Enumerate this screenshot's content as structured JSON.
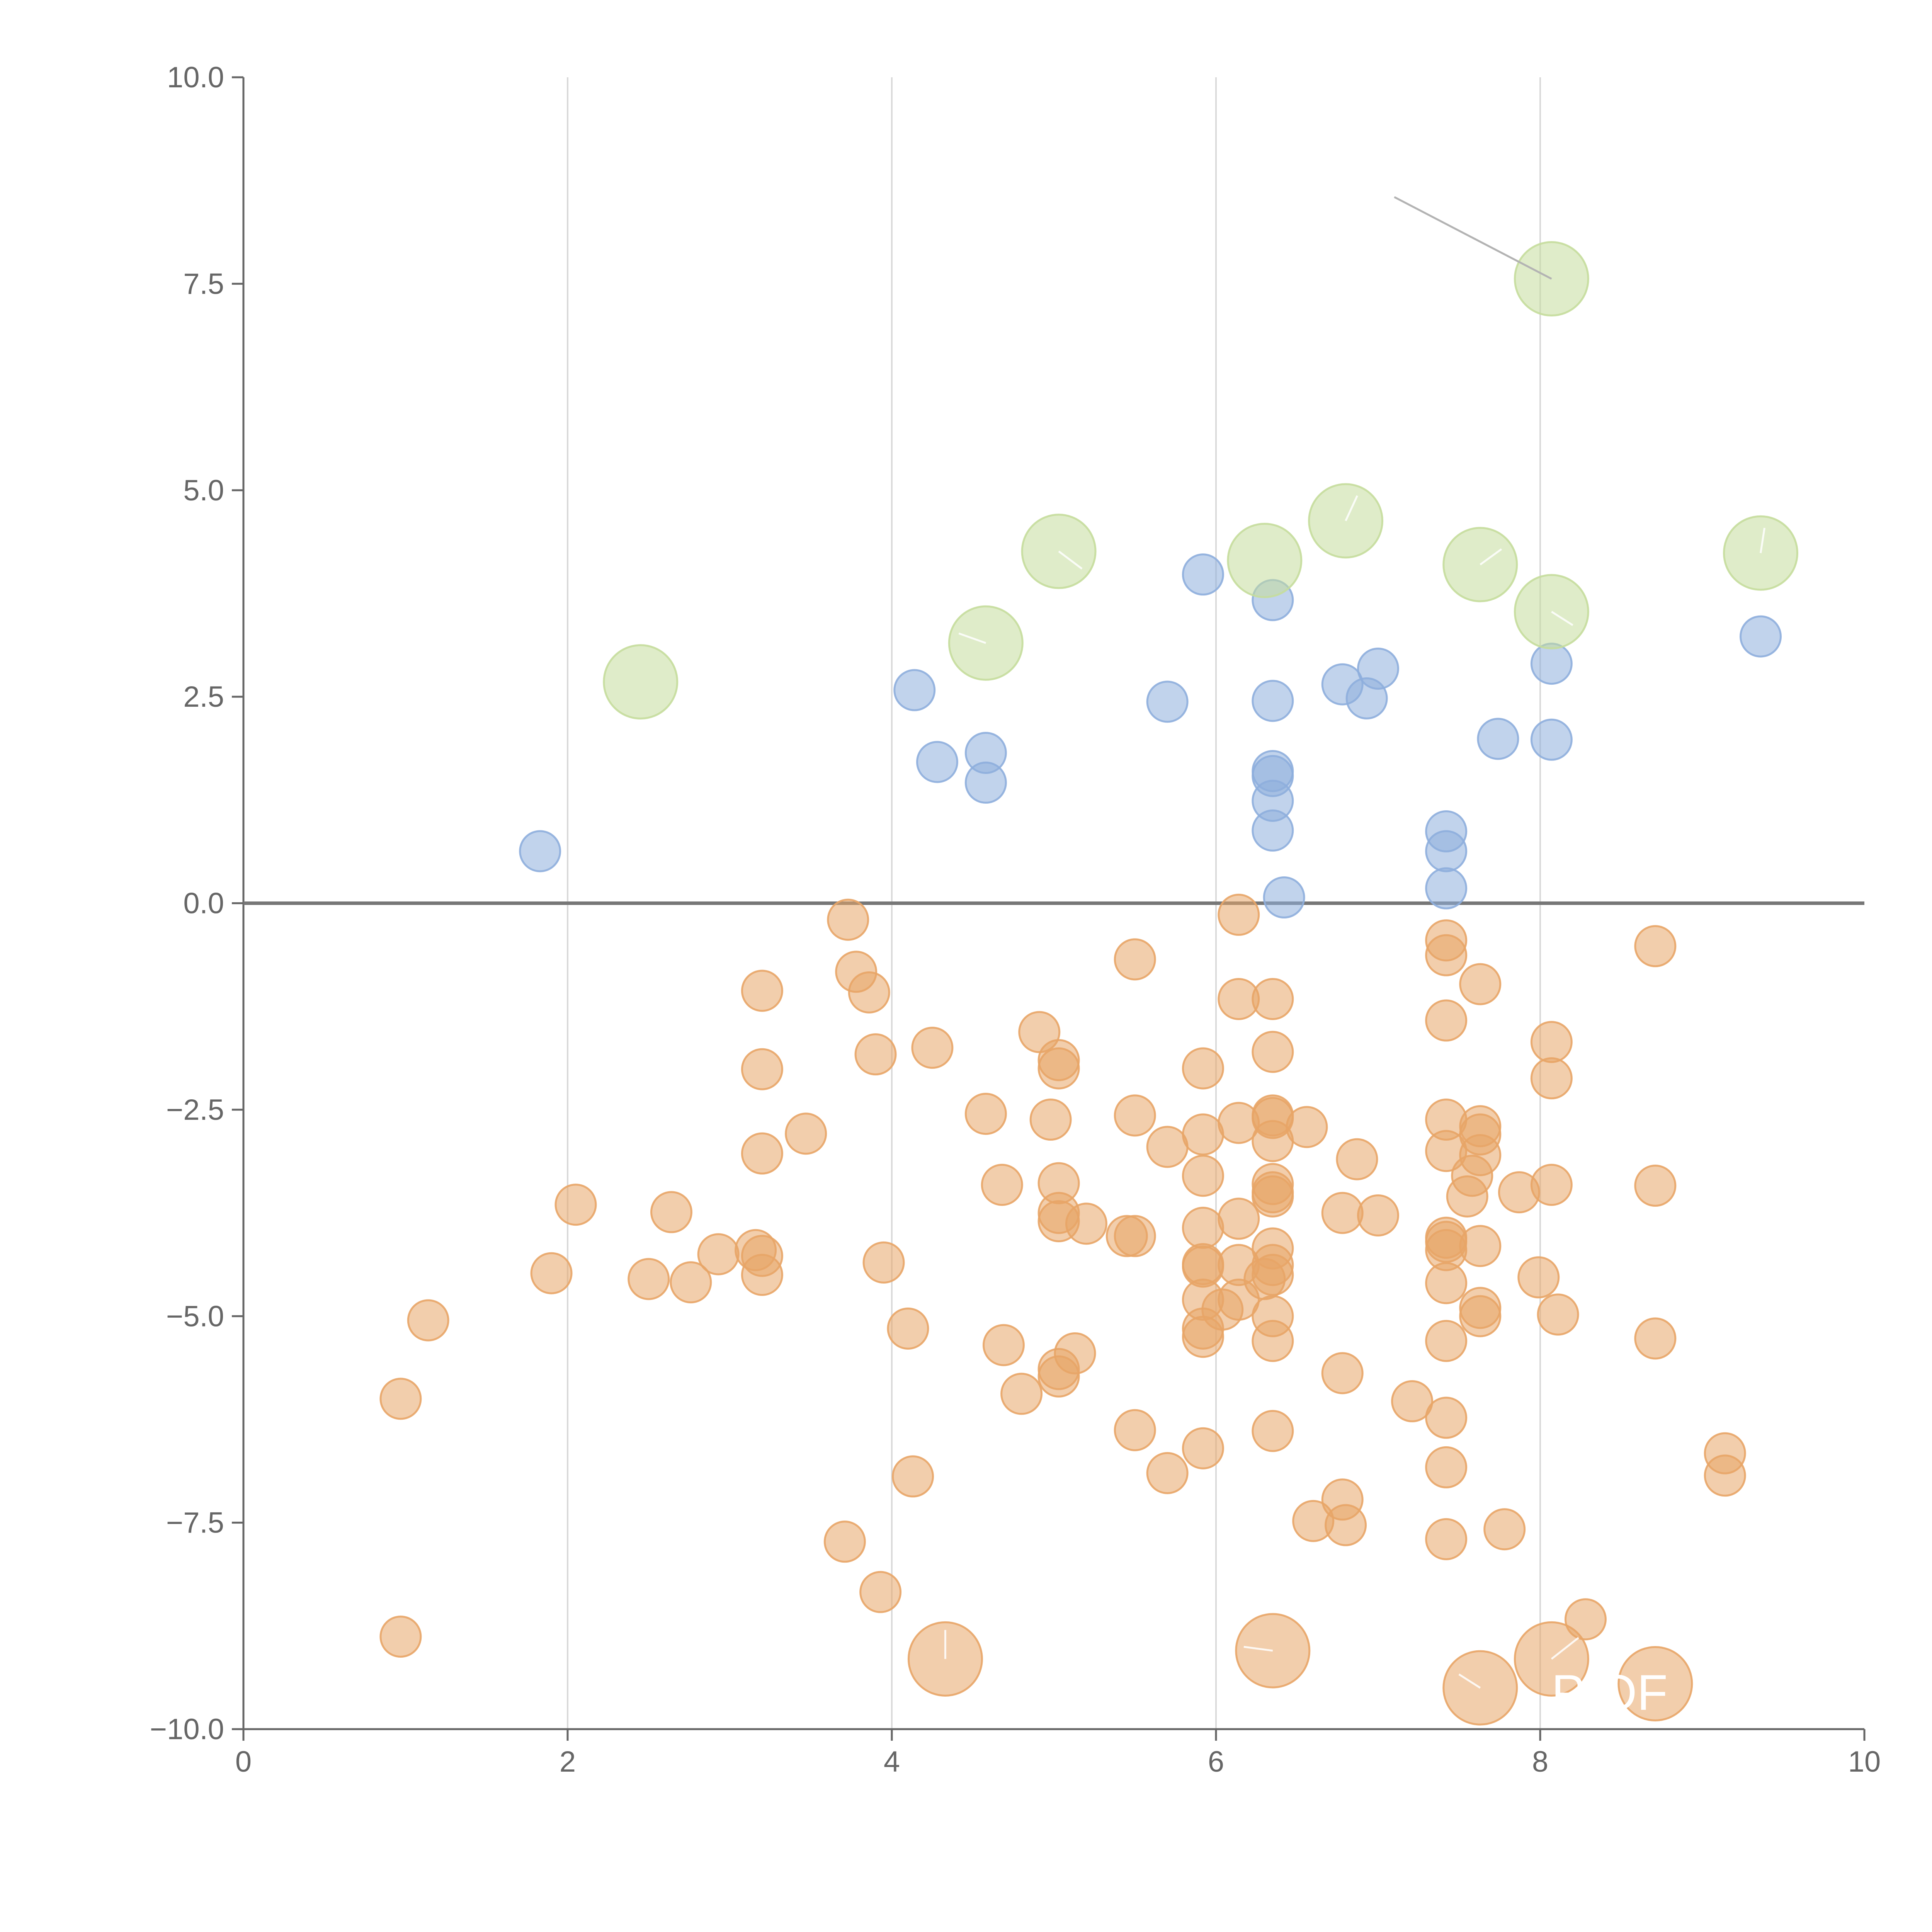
{
  "chart_data": {
    "type": "scatter",
    "title": "",
    "xlabel": "",
    "ylabel": "",
    "xlim": [
      0,
      10
    ],
    "ylim": [
      -10,
      10
    ],
    "grid": "vertical",
    "x_ticks": [
      0,
      2,
      4,
      6,
      8,
      10
    ],
    "x_tick_labels": [
      "0",
      "2",
      "4",
      "6",
      "8",
      "10"
    ],
    "y_ticks": [
      10,
      7.5,
      5,
      2.5,
      0,
      -2.5,
      -5,
      -7.5,
      -10
    ],
    "y_tick_labels": [
      "10.0",
      "7.5",
      "5.0",
      "2.5",
      "0.0",
      "−2.5",
      "−5.0",
      "−7.5",
      "−10.0"
    ],
    "reference_line_y": 0,
    "colors": {
      "axis": "#666666",
      "grid": "#d9d9d9",
      "zero_line": "#777777",
      "connector": "#b3b3b3",
      "label_leader": "#ffffff"
    },
    "annotation_text": "P OF",
    "series": [
      {
        "name": "Orange",
        "color": "#e8a567",
        "size": "small",
        "points": [
          [
            3.73,
            -0.2
          ],
          [
            3.78,
            -0.83
          ],
          [
            3.86,
            -1.08
          ],
          [
            3.9,
            -1.83
          ],
          [
            3.2,
            -1.06
          ],
          [
            3.2,
            -2.01
          ],
          [
            3.2,
            -3.03
          ],
          [
            3.47,
            -2.79
          ],
          [
            2.05,
            -3.65
          ],
          [
            2.64,
            -3.74
          ],
          [
            1.9,
            -4.48
          ],
          [
            2.5,
            -4.55
          ],
          [
            2.76,
            -4.59
          ],
          [
            2.93,
            -4.25
          ],
          [
            3.16,
            -4.2
          ],
          [
            3.2,
            -4.27
          ],
          [
            3.2,
            -4.5
          ],
          [
            1.14,
            -5.05
          ],
          [
            0.97,
            -6.0
          ],
          [
            0.97,
            -8.88
          ],
          [
            4.25,
            -1.75
          ],
          [
            4.58,
            -2.55
          ],
          [
            4.68,
            -3.41
          ],
          [
            4.91,
            -1.56
          ],
          [
            5.03,
            -1.9
          ],
          [
            5.03,
            -2.0
          ],
          [
            4.98,
            -2.62
          ],
          [
            5.03,
            -3.39
          ],
          [
            5.03,
            -3.75
          ],
          [
            5.03,
            -3.85
          ],
          [
            5.2,
            -3.88
          ],
          [
            5.45,
            -4.03
          ],
          [
            5.5,
            -4.03
          ],
          [
            3.95,
            -4.35
          ],
          [
            4.1,
            -5.15
          ],
          [
            4.69,
            -5.35
          ],
          [
            4.8,
            -5.94
          ],
          [
            5.03,
            -5.64
          ],
          [
            5.03,
            -5.73
          ],
          [
            5.13,
            -5.45
          ],
          [
            3.71,
            -7.73
          ],
          [
            3.93,
            -8.34
          ],
          [
            4.13,
            -6.94
          ],
          [
            5.5,
            -0.68
          ],
          [
            5.5,
            -2.57
          ],
          [
            5.7,
            -2.95
          ],
          [
            5.92,
            -2.0
          ],
          [
            5.92,
            -2.8
          ],
          [
            5.92,
            -3.3
          ],
          [
            6.14,
            -0.14
          ],
          [
            6.14,
            -1.16
          ],
          [
            6.14,
            -2.66
          ],
          [
            6.14,
            -3.82
          ],
          [
            6.35,
            -1.16
          ],
          [
            6.35,
            -1.8
          ],
          [
            6.35,
            -2.57
          ],
          [
            6.35,
            -2.6
          ],
          [
            6.35,
            -2.88
          ],
          [
            6.35,
            -3.4
          ],
          [
            6.35,
            -3.5
          ],
          [
            6.35,
            -3.55
          ],
          [
            6.56,
            -2.71
          ],
          [
            6.87,
            -3.1
          ],
          [
            5.92,
            -3.93
          ],
          [
            5.92,
            -4.37
          ],
          [
            5.92,
            -4.4
          ],
          [
            6.14,
            -4.38
          ],
          [
            6.35,
            -4.18
          ],
          [
            6.35,
            -4.38
          ],
          [
            6.35,
            -4.5
          ],
          [
            6.3,
            -4.55
          ],
          [
            5.92,
            -4.8
          ],
          [
            6.04,
            -4.92
          ],
          [
            6.14,
            -4.8
          ],
          [
            5.92,
            -5.15
          ],
          [
            5.92,
            -5.25
          ],
          [
            6.35,
            -5.0
          ],
          [
            6.35,
            -5.3
          ],
          [
            5.5,
            -6.38
          ],
          [
            5.7,
            -6.9
          ],
          [
            5.92,
            -6.6
          ],
          [
            6.35,
            -6.39
          ],
          [
            6.78,
            -3.75
          ],
          [
            7.0,
            -3.78
          ],
          [
            6.78,
            -5.69
          ],
          [
            7.21,
            -6.03
          ],
          [
            6.6,
            -7.48
          ],
          [
            6.78,
            -7.22
          ],
          [
            6.8,
            -7.53
          ],
          [
            7.42,
            -0.45
          ],
          [
            7.42,
            -0.63
          ],
          [
            7.42,
            -1.42
          ],
          [
            7.63,
            -0.98
          ],
          [
            7.42,
            -2.62
          ],
          [
            7.42,
            -3.0
          ],
          [
            7.63,
            -2.7
          ],
          [
            7.63,
            -2.8
          ],
          [
            7.63,
            -3.05
          ],
          [
            7.58,
            -3.3
          ],
          [
            7.55,
            -3.55
          ],
          [
            7.42,
            -4.05
          ],
          [
            7.42,
            -4.1
          ],
          [
            7.42,
            -4.2
          ],
          [
            7.63,
            -4.15
          ],
          [
            7.42,
            -4.6
          ],
          [
            7.63,
            -4.9
          ],
          [
            7.63,
            -5.0
          ],
          [
            7.42,
            -5.3
          ],
          [
            7.42,
            -6.23
          ],
          [
            7.42,
            -6.83
          ],
          [
            7.42,
            -7.7
          ],
          [
            7.78,
            -7.58
          ],
          [
            8.07,
            -1.68
          ],
          [
            8.07,
            -2.12
          ],
          [
            7.87,
            -3.5
          ],
          [
            8.07,
            -3.41
          ],
          [
            7.99,
            -4.53
          ],
          [
            8.11,
            -4.98
          ],
          [
            8.28,
            -8.67
          ],
          [
            8.71,
            -0.52
          ],
          [
            8.71,
            -3.42
          ],
          [
            8.71,
            -5.27
          ],
          [
            9.14,
            -6.66
          ],
          [
            9.14,
            -6.93
          ]
        ]
      },
      {
        "name": "Orange (large)",
        "color": "#e8a567",
        "size": "large",
        "points": [
          [
            4.33,
            -9.15
          ],
          [
            6.35,
            -9.05
          ],
          [
            7.63,
            -9.5
          ],
          [
            8.07,
            -9.15
          ],
          [
            8.71,
            -9.45
          ]
        ]
      },
      {
        "name": "Blue",
        "color": "#8eaedd",
        "size": "small",
        "points": [
          [
            1.83,
            0.63
          ],
          [
            4.14,
            2.58
          ],
          [
            4.28,
            1.71
          ],
          [
            4.58,
            1.82
          ],
          [
            4.58,
            1.46
          ],
          [
            5.7,
            2.44
          ],
          [
            5.92,
            3.98
          ],
          [
            6.35,
            3.67
          ],
          [
            6.35,
            2.45
          ],
          [
            6.35,
            1.6
          ],
          [
            6.35,
            1.54
          ],
          [
            6.35,
            1.24
          ],
          [
            6.35,
            0.88
          ],
          [
            6.42,
            0.07
          ],
          [
            6.78,
            2.65
          ],
          [
            6.93,
            2.48
          ],
          [
            7.0,
            2.84
          ],
          [
            7.42,
            0.87
          ],
          [
            7.42,
            0.63
          ],
          [
            7.42,
            0.18
          ],
          [
            7.74,
            1.99
          ],
          [
            8.07,
            2.9
          ],
          [
            8.07,
            1.98
          ],
          [
            9.36,
            3.23
          ]
        ]
      },
      {
        "name": "Green",
        "color": "#c5dd9c",
        "size": "large",
        "points": [
          [
            2.45,
            2.68
          ],
          [
            4.58,
            3.15
          ],
          [
            5.03,
            4.26
          ],
          [
            6.3,
            4.15
          ],
          [
            6.8,
            4.63
          ],
          [
            7.63,
            4.1
          ],
          [
            8.07,
            3.53
          ],
          [
            8.07,
            7.56
          ],
          [
            9.36,
            4.24
          ]
        ]
      }
    ]
  }
}
